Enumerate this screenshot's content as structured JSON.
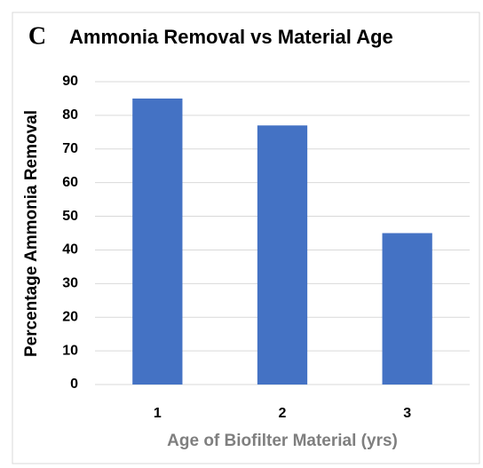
{
  "chart_data": {
    "type": "bar",
    "panel_label": "C",
    "title": "Ammonia Removal vs Material Age",
    "x_label": "Age of Biofilter Material (yrs)",
    "y_label": "Percentage Ammonia Removal",
    "categories": [
      "1",
      "2",
      "3"
    ],
    "values": [
      85,
      77,
      45
    ],
    "color": "#4472c4",
    "ylim": [
      0,
      90
    ],
    "yticks": [
      0,
      10,
      20,
      30,
      40,
      50,
      60,
      70,
      80,
      90
    ],
    "grid": true
  }
}
